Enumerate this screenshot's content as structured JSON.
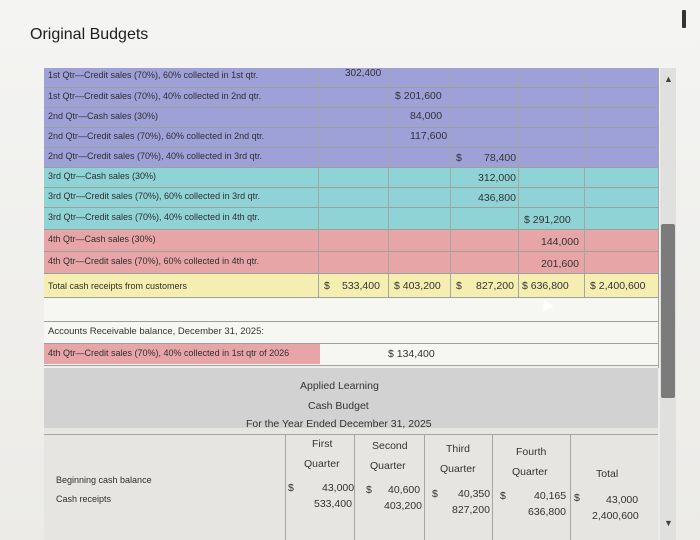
{
  "window": {
    "title": "Original Budgets"
  },
  "colors": {
    "purple": "#9ea0d8",
    "teal": "#8fd3d6",
    "red": "#e7a5a8",
    "yellow": "#f4eeb0",
    "gray": "#c9c9c9",
    "blank": "#f6f6f2"
  },
  "rows": [
    {
      "label": "1st Qtr—Credit sales (70%), 60% collected in 1st qtr.",
      "v1": "302,400"
    },
    {
      "label": "1st Qtr—Credit sales (70%), 40% collected in 2nd qtr.",
      "v2": "$ 201,600"
    },
    {
      "label": "2nd Qtr—Cash sales (30%)",
      "v2": "84,000"
    },
    {
      "label": "2nd Qtr—Credit sales (70%), 60% collected in 2nd qtr.",
      "v2": "117,600"
    },
    {
      "label": "2nd Qtr—Credit sales (70%), 40% collected in 3rd qtr.",
      "v3": "78,400",
      "cur": "$"
    },
    {
      "label": "3rd Qtr—Cash sales (30%)",
      "v3": "312,000"
    },
    {
      "label": "3rd Qtr—Credit sales (70%), 60% collected in 3rd qtr.",
      "v3": "436,800"
    },
    {
      "label": "3rd Qtr—Credit sales (70%), 40% collected in 4th qtr.",
      "v4": "$ 291,200"
    },
    {
      "label": "4th Qtr—Cash sales (30%)",
      "v4": "144,000"
    },
    {
      "label": "4th Qtr—Credit sales (70%), 60% collected in 4th qtr.",
      "v4": "201,600"
    }
  ],
  "total": {
    "label": "Total cash receipts from customers",
    "cur1": "$",
    "q1": "533,400",
    "q2": "$ 403,200",
    "cur3": "$",
    "q3": "827,200",
    "q4": "$ 636,800",
    "tot": "$ 2,400,600"
  },
  "ar": {
    "heading": "Accounts Receivable balance, December 31, 2025:",
    "label": "4th Qtr—Credit sales (70%), 40% collected in 1st qtr of 2026",
    "value": "$ 134,400"
  },
  "budget": {
    "company": "Applied Learning",
    "name": "Cash Budget",
    "period": "For the Year Ended December 31, 2025",
    "headers": [
      "First\nQuarter",
      "Second\nQuarter",
      "Third\nQuarter",
      "Fourth\nQuarter",
      "Total"
    ],
    "beginning_label": "Beginning cash balance",
    "receipts_label": "Cash receipts",
    "beginning_values": [
      "43,000",
      "40,600",
      "40,350",
      "40,165",
      "43,000"
    ],
    "receipts_values": [
      "533,400",
      "403,200",
      "827,200",
      "636,800",
      "2,400,600"
    ],
    "currency": "$"
  }
}
